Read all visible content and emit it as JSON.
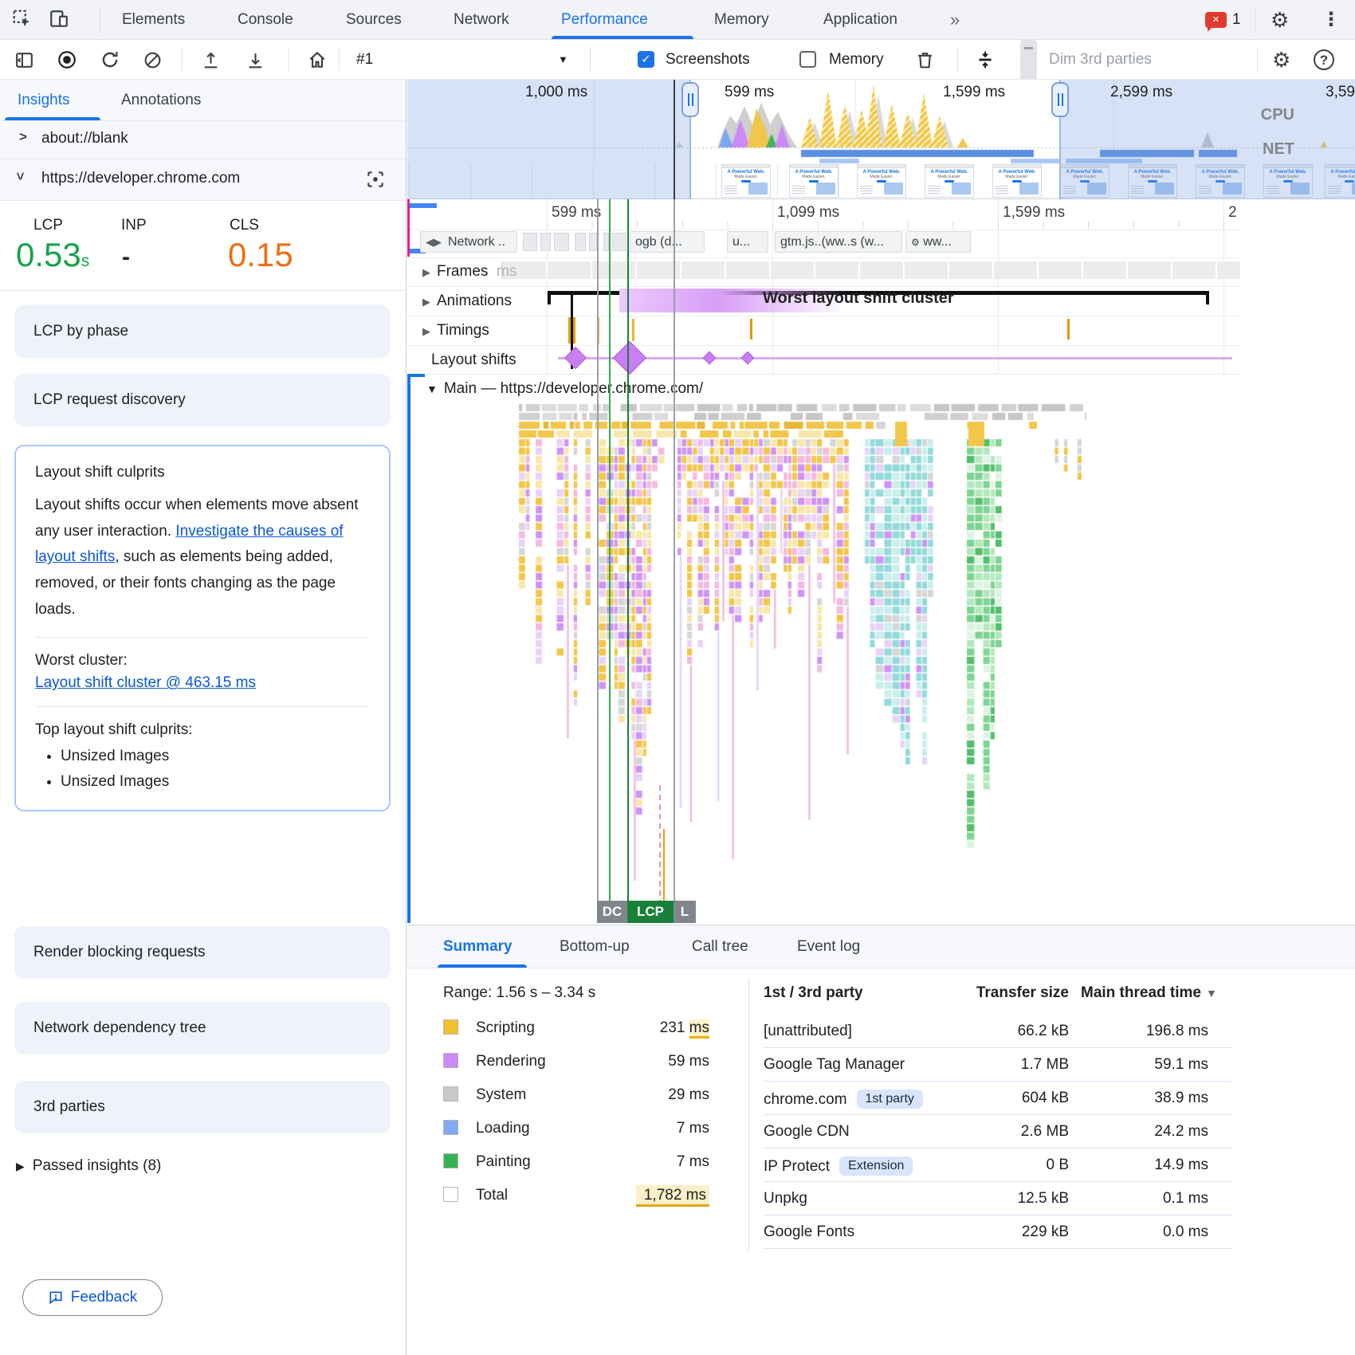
{
  "top": {
    "tabs": [
      "Elements",
      "Console",
      "Sources",
      "Network",
      "Performance",
      "Memory",
      "Application"
    ],
    "overflow": "»",
    "error_count": "1"
  },
  "toolbar": {
    "profile": "#1",
    "screenshots": "Screenshots",
    "memory": "Memory",
    "dim3p": "Dim 3rd parties"
  },
  "sidebar": {
    "tabs": [
      "Insights",
      "Annotations"
    ],
    "frame1": "about://blank",
    "frame2": "https://developer.chrome.com",
    "metrics": {
      "lcp_label": "LCP",
      "lcp_value": "0.53",
      "lcp_unit": "s",
      "inp_label": "INP",
      "inp_value": "-",
      "cls_label": "CLS",
      "cls_value": "0.15"
    },
    "cards": {
      "lcp_phase": "LCP by phase",
      "lcp_discovery": "LCP request discovery",
      "render_blocking": "Render blocking requests",
      "network_tree": "Network dependency tree",
      "third_parties": "3rd parties"
    },
    "culprits": {
      "title": "Layout shift culprits",
      "body": "Layout shifts occur when elements move absent any user interaction. ",
      "link": "Investigate the causes of layout shifts",
      "body2": ", such as elements being added, removed, or their fonts changing as the page loads.",
      "worst_label": "Worst cluster:",
      "worst_link": "Layout shift cluster @ 463.15 ms",
      "top_label": "Top layout shift culprits:",
      "bullet1": "Unsized Images",
      "bullet2": "Unsized Images"
    },
    "passed": "Passed insights (8)",
    "feedback": "Feedback"
  },
  "overview": {
    "t1": "1,000 ms",
    "t2": "599 ms",
    "t3": "1,599 ms",
    "t4": "2,599 ms",
    "t5": "3,59",
    "cpu": "CPU",
    "net": "NET",
    "thumb_line1": "A Powerful Web.",
    "thumb_line2": "Made Easier."
  },
  "tracks": {
    "r1": "599 ms",
    "r2": "1,099 ms",
    "r3": "1,599 ms",
    "r4": "2",
    "network": "Network ..",
    "frames": "Frames",
    "frames_ghost": "ms",
    "animations": "Animations",
    "timings": "Timings",
    "shifts": "Layout shifts",
    "chip1": "ogb (d...",
    "chip2": "u...",
    "chip3": "gtm.js..(ww..s (w...",
    "chip4": "ww...",
    "cluster": "Worst layout shift cluster",
    "main": "Main — https://developer.chrome.com/",
    "m1": "DC",
    "m2": "LCP",
    "m3": "L"
  },
  "bottom": {
    "tabs": [
      "Summary",
      "Bottom-up",
      "Call tree",
      "Event log"
    ],
    "range": "Range: 1.56 s – 3.34 s",
    "legend": [
      {
        "label": "Scripting",
        "value": "231",
        "unit": "ms",
        "color": "#f0c12d"
      },
      {
        "label": "Rendering",
        "value": "59",
        "unit": "ms",
        "color": "#cb8af5"
      },
      {
        "label": "System",
        "value": "29",
        "unit": "ms",
        "color": "#c8c8c8"
      },
      {
        "label": "Loading",
        "value": "7",
        "unit": "ms",
        "color": "#82aaf2"
      },
      {
        "label": "Painting",
        "value": "7",
        "unit": "ms",
        "color": "#34b354"
      },
      {
        "label": "Total",
        "value": "1,782",
        "unit": "ms",
        "color": "#ffffff"
      }
    ],
    "table": {
      "h1": "1st / 3rd party",
      "h2": "Transfer size",
      "h3": "Main thread time",
      "rows": [
        {
          "party": "[unattributed]",
          "transfer": "66.2 kB",
          "time": "196.8 ms"
        },
        {
          "party": "Google Tag Manager",
          "transfer": "1.7 MB",
          "time": "59.1 ms"
        },
        {
          "party": "chrome.com",
          "badge": "1st party",
          "transfer": "604 kB",
          "time": "38.9 ms"
        },
        {
          "party": "Google CDN",
          "transfer": "2.6 MB",
          "time": "24.2 ms"
        },
        {
          "party": "IP Protect",
          "badge": "Extension",
          "transfer": "0 B",
          "time": "14.9 ms"
        },
        {
          "party": "Unpkg",
          "transfer": "12.5 kB",
          "time": "0.1 ms"
        },
        {
          "party": "Google Fonts",
          "transfer": "229 kB",
          "time": "0.0 ms"
        }
      ]
    }
  },
  "colors": {
    "accent": "#1a73e8",
    "good": "#17a34a",
    "needs_improvement": "#ee6f12",
    "link": "#0b57d0",
    "flame": {
      "yellow": "#f2c64b",
      "paleYellow": "#f8e7ab",
      "purple": "#cf93f5",
      "palePurple": "#e8d2f8",
      "pink": "#f4b9de",
      "gray": "#d6d6d6",
      "cyan": "#93dada",
      "paleCyan": "#c9eeec",
      "green": "#7ed492",
      "paleGreen": "#b2e8bc",
      "deepGreen": "#54bd6c"
    },
    "marker_gray": "#80868b",
    "marker_green": "#34a853",
    "marker_deep_green": "#188038",
    "marker_pink": "#f48fb1",
    "marker_yellow": "#e0a800"
  }
}
